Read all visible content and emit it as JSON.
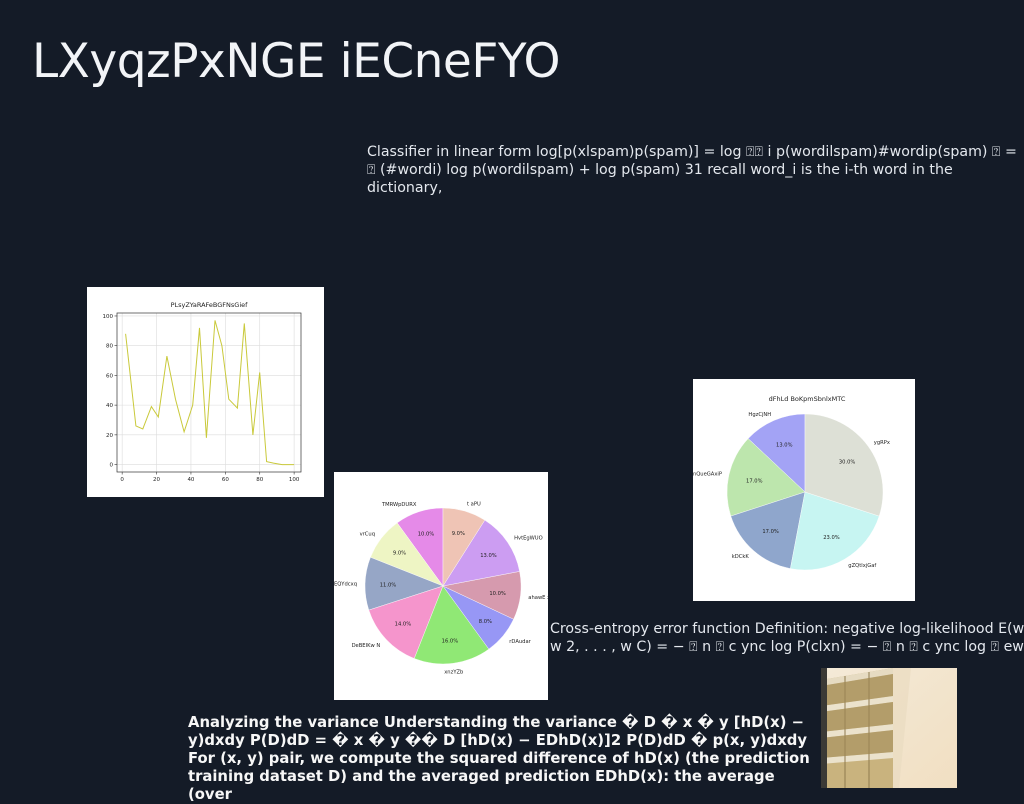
{
  "slide": {
    "title": "LXyqzPxNGE iECneFYO",
    "paragraph_1": "Classifier in linear form log[p(xlspam)p(spam)] = log ⍰⍰ i p(wordilspam)#wordip(spam) ⍰ = ⍰ (#wordi) log p(wordilspam) + log p(spam) 31 recall word_i is the i-th word in the dictionary,",
    "paragraph_2_line_1": "Cross-entropy error function Definition: negative log-likelihood E(w",
    "paragraph_2_line_2": "w 2, . . . , w C) = − ⍰ n ⍰ c ync log P(clxn) = − ⍰ n ⍰ c ync log ⍰ ew ⍰",
    "paragraph_3": "Analyzing the variance Understanding the variance � D � x � y [hD(x) − y)dxdy P(D)dD = � x � y �� D [hD(x) − EDhD(x)]2 P(D)dD � p(x, y)dxdy For (x, y) pair, we compute the squared difference of hD(x) (the prediction training dataset D) and the averaged prediction EDhD(x): the average (over"
  },
  "chart_data": [
    {
      "type": "line",
      "title": "PLsyZYaRAFeBGFNsGief",
      "x": [
        2,
        8,
        12,
        17,
        21,
        26,
        31,
        36,
        41,
        45,
        49,
        54,
        58,
        62,
        67,
        71,
        76,
        80,
        84,
        88,
        93,
        97,
        100
      ],
      "y": [
        88,
        26,
        24,
        39,
        32,
        73,
        44,
        22,
        40,
        92,
        18,
        97,
        80,
        44,
        38,
        95,
        20,
        62,
        2,
        1,
        0,
        0,
        0
      ],
      "xlim": [
        -3,
        104
      ],
      "ylim": [
        -5,
        102
      ],
      "xticks": [
        0,
        20,
        40,
        60,
        80,
        100
      ],
      "yticks": [
        0,
        20,
        40,
        60,
        80,
        100
      ],
      "grid": true,
      "color": "#c9c93a"
    },
    {
      "type": "pie",
      "slices": [
        {
          "label": "TMRWpDURX",
          "value": 10.0,
          "color": "#e58ae8"
        },
        {
          "label": "vrCuq",
          "value": 9.0,
          "color": "#eef5c4"
        },
        {
          "label": "mxEQYdcxq",
          "value": 11.0,
          "color": "#96a6c6"
        },
        {
          "label": "DeBEIKw N",
          "value": 14.0,
          "color": "#f595cc"
        },
        {
          "label": "xnzYZb",
          "value": 16.0,
          "color": "#90e875"
        },
        {
          "label": "rDAudar",
          "value": 8.0,
          "color": "#9797f5"
        },
        {
          "label": "ahawE xSrH",
          "value": 10.0,
          "color": "#d69aae"
        },
        {
          "label": "HvtEgWUO",
          "value": 13.0,
          "color": "#cc9df2"
        },
        {
          "label": "t aPU",
          "value": 9.0,
          "color": "#efc4b5"
        }
      ]
    },
    {
      "type": "pie",
      "title": "dFhLd BoKpmSbnlxMTC",
      "slices": [
        {
          "label": "HgzCjNH",
          "value": 13.0,
          "color": "#a3a3f5"
        },
        {
          "label": "nQueGAxiP",
          "value": 17.0,
          "color": "#bde6ad"
        },
        {
          "label": "kDCkK",
          "value": 17.0,
          "color": "#8fa6cc"
        },
        {
          "label": "gZQtlxjGaf",
          "value": 23.0,
          "color": "#c7f5f2"
        },
        {
          "label": "ygRPx",
          "value": 30.0,
          "color": "#dde0d6"
        }
      ]
    }
  ]
}
